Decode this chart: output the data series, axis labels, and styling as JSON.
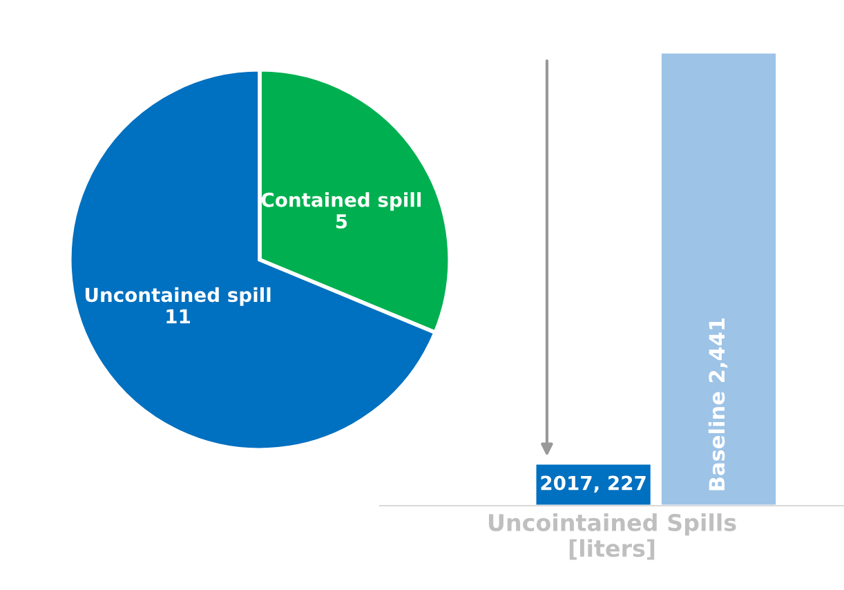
{
  "chart_data": [
    {
      "type": "pie",
      "categories": [
        "Contained spill",
        "Uncontained spill"
      ],
      "values": [
        5,
        11
      ],
      "colors": [
        "#00b050",
        "#0070c0"
      ],
      "data_labels": true,
      "legend": false
    },
    {
      "type": "bar",
      "categories": [
        null,
        null
      ],
      "values": [
        227,
        2441
      ],
      "colors": [
        "#0070c0",
        "#9dc3e6"
      ],
      "value_labels": [
        "2017, 227",
        "Baseline 2,441"
      ],
      "xlabel": "Uncointained Spills\n[liters]",
      "ylim": [
        0,
        2441
      ]
    }
  ]
}
